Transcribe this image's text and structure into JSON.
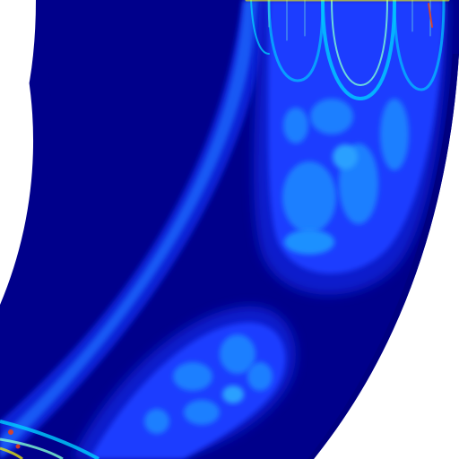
{
  "figure": {
    "kind": "contour-field",
    "colormap": [
      "#000080",
      "#0000d0",
      "#1f3cff",
      "#1e90ff",
      "#00d0ff",
      "#7fffd4",
      "#ffff00",
      "#ff4000"
    ],
    "background_color": "#ffffff",
    "domain_color": "#00008b",
    "band_color": "#0c2be0",
    "shows_text": false
  }
}
